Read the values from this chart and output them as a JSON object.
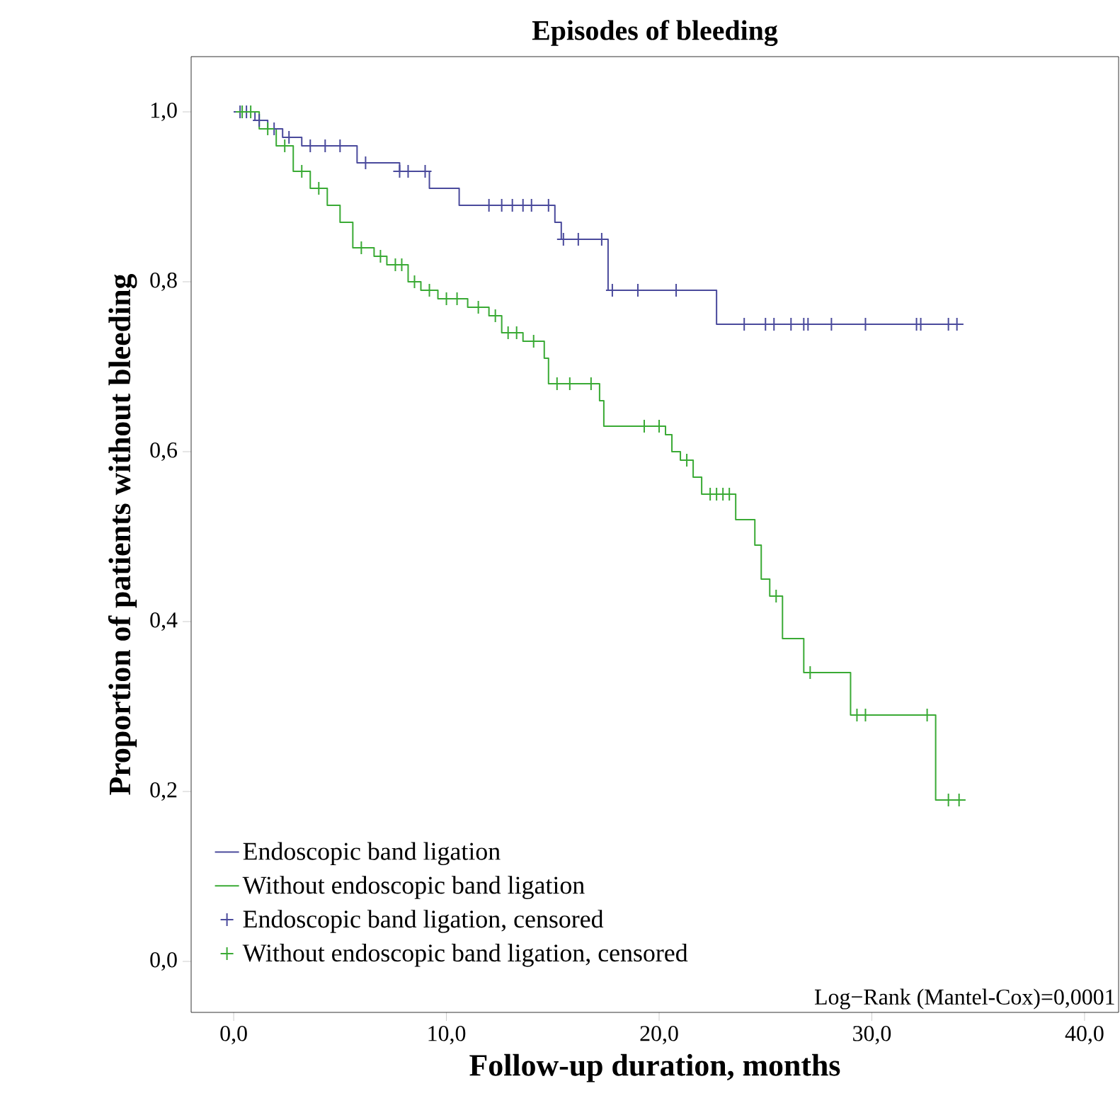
{
  "chart_data": {
    "type": "step",
    "title": "Episodes of bleeding",
    "xlabel": "Follow-up duration, months",
    "ylabel": "Proportion of patients without bleeding",
    "xlim": [
      -2.0,
      41.6
    ],
    "ylim": [
      -0.06,
      1.065
    ],
    "xticks": [
      {
        "value": 0,
        "label": "0,0"
      },
      {
        "value": 10,
        "label": "10,0"
      },
      {
        "value": 20,
        "label": "20,0"
      },
      {
        "value": 30,
        "label": "30,0"
      },
      {
        "value": 40,
        "label": "40,0"
      }
    ],
    "yticks": [
      {
        "value": 0,
        "label": "0,0"
      },
      {
        "value": 0.2,
        "label": "0,2"
      },
      {
        "value": 0.4,
        "label": "0,4"
      },
      {
        "value": 0.6,
        "label": "0,6"
      },
      {
        "value": 0.8,
        "label": "0,8"
      },
      {
        "value": 1.0,
        "label": "1,0"
      }
    ],
    "grid": false,
    "legend": "bottom left",
    "annotations": [
      "Log−Rank (Mantel-Cox)=0,0001"
    ],
    "series": [
      {
        "name": "Endoscopic band ligation",
        "marker": "none",
        "color": "#4a4a9c",
        "x": [
          0,
          1.0,
          1.6,
          2.3,
          3.2,
          5.8,
          7.8,
          9.2,
          10.6,
          15.1,
          15.4,
          17.6,
          22.7,
          34.3
        ],
        "values": [
          1.0,
          0.99,
          0.98,
          0.97,
          0.96,
          0.94,
          0.93,
          0.91,
          0.89,
          0.87,
          0.85,
          0.79,
          0.75,
          0.75
        ]
      },
      {
        "name": "Without endoscopic band ligation",
        "marker": "none",
        "color": "#3aaa35",
        "x": [
          0,
          1.2,
          2.0,
          2.8,
          3.6,
          4.4,
          5.0,
          5.6,
          6.6,
          7.2,
          8.2,
          8.8,
          9.6,
          11.0,
          12.0,
          12.6,
          13.6,
          14.6,
          14.8,
          17.2,
          17.4,
          20.3,
          20.6,
          21.0,
          21.6,
          22.0,
          23.6,
          24.5,
          24.8,
          25.2,
          25.8,
          26.8,
          29.0,
          33.0,
          34.4
        ],
        "values": [
          1.0,
          0.98,
          0.96,
          0.93,
          0.91,
          0.89,
          0.87,
          0.84,
          0.83,
          0.82,
          0.8,
          0.79,
          0.78,
          0.77,
          0.76,
          0.74,
          0.73,
          0.71,
          0.68,
          0.66,
          0.63,
          0.62,
          0.6,
          0.59,
          0.57,
          0.55,
          0.52,
          0.49,
          0.45,
          0.43,
          0.38,
          0.34,
          0.29,
          0.19,
          0.19
        ]
      },
      {
        "name": "Endoscopic band ligation, censored",
        "type": "scatter",
        "marker": "cross",
        "color": "#4a4a9c",
        "x": [
          0.3,
          0.6,
          1.2,
          1.9,
          2.6,
          3.6,
          4.3,
          5.0,
          6.2,
          7.8,
          8.2,
          9.0,
          12.0,
          12.6,
          13.1,
          13.6,
          14.0,
          14.8,
          15.5,
          16.2,
          17.3,
          17.8,
          19.0,
          20.8,
          24.0,
          25.0,
          25.4,
          26.2,
          26.8,
          27.0,
          28.1,
          29.7,
          32.1,
          32.3,
          33.6,
          34.0
        ],
        "values": [
          1.0,
          1.0,
          0.99,
          0.98,
          0.97,
          0.96,
          0.96,
          0.96,
          0.94,
          0.93,
          0.93,
          0.93,
          0.89,
          0.89,
          0.89,
          0.89,
          0.89,
          0.89,
          0.85,
          0.85,
          0.85,
          0.79,
          0.79,
          0.79,
          0.75,
          0.75,
          0.75,
          0.75,
          0.75,
          0.75,
          0.75,
          0.75,
          0.75,
          0.75,
          0.75,
          0.75
        ]
      },
      {
        "name": "Without endoscopic band ligation, censored",
        "type": "scatter",
        "marker": "cross",
        "color": "#3aaa35",
        "x": [
          0.4,
          0.8,
          1.6,
          2.4,
          3.2,
          4.0,
          6.0,
          6.9,
          7.6,
          7.9,
          8.5,
          9.2,
          10.0,
          10.5,
          11.5,
          12.3,
          12.9,
          13.3,
          14.1,
          15.2,
          15.8,
          16.8,
          19.3,
          20.0,
          21.3,
          22.4,
          22.7,
          23.0,
          23.3,
          25.5,
          27.1,
          29.3,
          29.7,
          32.6,
          33.6,
          34.1
        ],
        "values": [
          1.0,
          1.0,
          0.98,
          0.96,
          0.93,
          0.91,
          0.84,
          0.83,
          0.82,
          0.82,
          0.8,
          0.79,
          0.78,
          0.78,
          0.77,
          0.76,
          0.74,
          0.74,
          0.73,
          0.68,
          0.68,
          0.68,
          0.63,
          0.63,
          0.59,
          0.55,
          0.55,
          0.55,
          0.55,
          0.43,
          0.34,
          0.29,
          0.29,
          0.29,
          0.19,
          0.19
        ]
      }
    ]
  }
}
